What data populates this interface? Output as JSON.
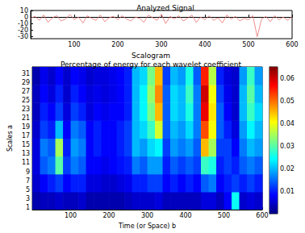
{
  "chart_data": [
    {
      "type": "line",
      "title": "Analyzed Signal",
      "color": "#e8706f",
      "grid": false,
      "x": [
        0,
        10,
        20,
        30,
        40,
        50,
        60,
        70,
        80,
        90,
        100,
        110,
        120,
        130,
        140,
        150,
        160,
        170,
        180,
        190,
        200,
        210,
        220,
        230,
        240,
        250,
        260,
        270,
        280,
        290,
        300,
        310,
        320,
        330,
        340,
        350,
        360,
        370,
        380,
        390,
        400,
        410,
        420,
        430,
        440,
        450,
        460,
        470,
        480,
        490,
        500,
        510,
        520,
        530,
        540,
        550,
        560,
        570,
        580,
        590,
        600
      ],
      "values": [
        -2,
        1,
        -5,
        3,
        -8,
        -1,
        2,
        -6,
        -3,
        4,
        -4,
        0,
        -9,
        2,
        -2,
        -5,
        3,
        -7,
        -1,
        1,
        -4,
        2,
        -3,
        -6,
        0,
        -2,
        -8,
        3,
        -1,
        -5,
        4,
        -10,
        1,
        -3,
        2,
        -6,
        -2,
        3,
        -8,
        0,
        -4,
        2,
        -5,
        -1,
        -9,
        3,
        -3,
        1,
        -6,
        -2,
        -4,
        2,
        -30,
        -3,
        1,
        -7,
        2,
        -4,
        0,
        -5,
        1
      ],
      "xlim": [
        0,
        600
      ],
      "xticks": [
        100,
        200,
        300,
        400,
        500,
        600
      ],
      "ylim": [
        -33,
        10
      ],
      "yticks": [
        -30,
        -20,
        -10,
        0,
        10
      ]
    },
    {
      "type": "heatmap",
      "title": "Scalogram",
      "subtitle": "Percentage of energy for each wavelet coefficient",
      "xlabel": "Time (or Space) b",
      "ylabel": "Scales a",
      "grid": false,
      "x": [
        10,
        30,
        50,
        70,
        90,
        110,
        130,
        150,
        170,
        190,
        210,
        230,
        250,
        270,
        290,
        310,
        330,
        350,
        370,
        390,
        410,
        430,
        450,
        470,
        490,
        510,
        530,
        550,
        570,
        590
      ],
      "y": [
        2.5,
        6.5,
        10.5,
        14.5,
        18.5,
        22.5,
        26.5,
        30.5
      ],
      "cells": [
        [
          0.003,
          0.004,
          0.004,
          0.005,
          0.004,
          0.004,
          0.005,
          0.003,
          0.003,
          0.003,
          0.003,
          0.003,
          0.004,
          0.005,
          0.005,
          0.005,
          0.006,
          0.004,
          0.004,
          0.004,
          0.004,
          0.004,
          0.006,
          0.006,
          0.004,
          0.008,
          0.025,
          0.005,
          0.006,
          0.005
        ],
        [
          0.005,
          0.008,
          0.01,
          0.012,
          0.008,
          0.01,
          0.01,
          0.006,
          0.006,
          0.005,
          0.005,
          0.006,
          0.007,
          0.01,
          0.01,
          0.012,
          0.012,
          0.008,
          0.01,
          0.008,
          0.01,
          0.008,
          0.014,
          0.016,
          0.008,
          0.01,
          0.012,
          0.01,
          0.012,
          0.01
        ],
        [
          0.006,
          0.014,
          0.016,
          0.03,
          0.012,
          0.016,
          0.014,
          0.008,
          0.008,
          0.007,
          0.008,
          0.009,
          0.01,
          0.016,
          0.014,
          0.018,
          0.018,
          0.01,
          0.014,
          0.012,
          0.014,
          0.012,
          0.028,
          0.026,
          0.01,
          0.012,
          0.01,
          0.014,
          0.016,
          0.014
        ],
        [
          0.006,
          0.016,
          0.014,
          0.035,
          0.01,
          0.018,
          0.016,
          0.008,
          0.01,
          0.008,
          0.008,
          0.01,
          0.012,
          0.02,
          0.018,
          0.022,
          0.024,
          0.012,
          0.018,
          0.016,
          0.018,
          0.014,
          0.045,
          0.035,
          0.012,
          0.012,
          0.008,
          0.016,
          0.02,
          0.018
        ],
        [
          0.005,
          0.012,
          0.01,
          0.02,
          0.008,
          0.016,
          0.014,
          0.008,
          0.01,
          0.008,
          0.008,
          0.01,
          0.012,
          0.02,
          0.022,
          0.028,
          0.038,
          0.014,
          0.02,
          0.018,
          0.022,
          0.016,
          0.052,
          0.04,
          0.014,
          0.01,
          0.006,
          0.018,
          0.024,
          0.02
        ],
        [
          0.004,
          0.01,
          0.008,
          0.012,
          0.006,
          0.012,
          0.01,
          0.006,
          0.008,
          0.007,
          0.008,
          0.008,
          0.01,
          0.02,
          0.024,
          0.032,
          0.045,
          0.014,
          0.022,
          0.02,
          0.026,
          0.016,
          0.058,
          0.042,
          0.014,
          0.008,
          0.005,
          0.02,
          0.028,
          0.022
        ],
        [
          0.004,
          0.008,
          0.006,
          0.01,
          0.005,
          0.01,
          0.008,
          0.006,
          0.007,
          0.006,
          0.007,
          0.008,
          0.01,
          0.02,
          0.024,
          0.034,
          0.048,
          0.014,
          0.022,
          0.02,
          0.028,
          0.016,
          0.06,
          0.04,
          0.012,
          0.007,
          0.005,
          0.02,
          0.03,
          0.02
        ],
        [
          0.003,
          0.007,
          0.005,
          0.008,
          0.005,
          0.008,
          0.007,
          0.005,
          0.006,
          0.006,
          0.007,
          0.008,
          0.01,
          0.02,
          0.022,
          0.032,
          0.045,
          0.012,
          0.02,
          0.018,
          0.026,
          0.014,
          0.055,
          0.036,
          0.01,
          0.006,
          0.005,
          0.018,
          0.028,
          0.018
        ]
      ],
      "xlim": [
        0,
        600
      ],
      "xticks": [
        100,
        200,
        300,
        400,
        500,
        600
      ],
      "ylim": [
        0.5,
        32.5
      ],
      "yticks": [
        1,
        3,
        5,
        7,
        9,
        11,
        13,
        15,
        17,
        19,
        21,
        23,
        25,
        27,
        29,
        31
      ],
      "colorbar": {
        "range": [
          0,
          0.065
        ],
        "ticks": [
          0.01,
          0.02,
          0.03,
          0.04,
          0.05,
          0.06
        ]
      }
    }
  ]
}
